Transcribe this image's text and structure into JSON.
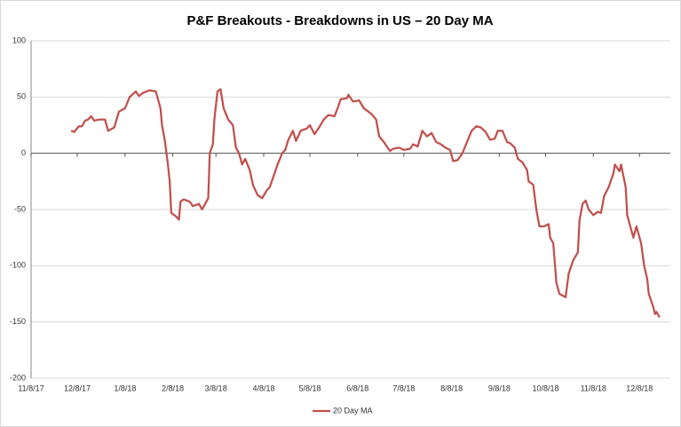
{
  "chart_data": {
    "type": "line",
    "title": "P&F Breakouts - Breakdowns in US – 20 Day MA",
    "x": [
      "2017-12-04",
      "2017-12-06",
      "2017-12-09",
      "2017-12-11",
      "2017-12-13",
      "2017-12-15",
      "2017-12-17",
      "2017-12-19",
      "2017-12-22",
      "2017-12-26",
      "2017-12-28",
      "2018-01-01",
      "2018-01-04",
      "2018-01-08",
      "2018-01-11",
      "2018-01-15",
      "2018-01-17",
      "2018-01-20",
      "2018-01-24",
      "2018-01-28",
      "2018-01-31",
      "2018-02-01",
      "2018-02-03",
      "2018-02-05",
      "2018-02-06",
      "2018-02-07",
      "2018-02-10",
      "2018-02-12",
      "2018-02-13",
      "2018-02-15",
      "2018-02-19",
      "2018-02-21",
      "2018-02-25",
      "2018-02-27",
      "2018-03-01",
      "2018-03-03",
      "2018-03-04",
      "2018-03-06",
      "2018-03-07",
      "2018-03-09",
      "2018-03-11",
      "2018-03-13",
      "2018-03-16",
      "2018-03-19",
      "2018-03-21",
      "2018-03-23",
      "2018-03-25",
      "2018-03-27",
      "2018-03-30",
      "2018-04-01",
      "2018-04-04",
      "2018-04-07",
      "2018-04-10",
      "2018-04-12",
      "2018-04-15",
      "2018-04-17",
      "2018-04-20",
      "2018-04-22",
      "2018-04-24",
      "2018-04-27",
      "2018-04-29",
      "2018-05-02",
      "2018-05-06",
      "2018-05-08",
      "2018-05-11",
      "2018-05-14",
      "2018-05-17",
      "2018-05-20",
      "2018-05-24",
      "2018-05-26",
      "2018-05-28",
      "2018-06-01",
      "2018-06-02",
      "2018-06-05",
      "2018-06-09",
      "2018-06-12",
      "2018-06-14",
      "2018-06-17",
      "2018-06-20",
      "2018-06-22",
      "2018-06-25",
      "2018-06-29",
      "2018-07-01",
      "2018-07-05",
      "2018-07-08",
      "2018-07-12",
      "2018-07-14",
      "2018-07-17",
      "2018-07-20",
      "2018-07-23",
      "2018-07-26",
      "2018-07-29",
      "2018-08-01",
      "2018-08-04",
      "2018-08-07",
      "2018-08-09",
      "2018-08-12",
      "2018-08-15",
      "2018-08-18",
      "2018-08-21",
      "2018-08-24",
      "2018-08-27",
      "2018-08-30",
      "2018-09-02",
      "2018-09-05",
      "2018-09-07",
      "2018-09-10",
      "2018-09-13",
      "2018-09-15",
      "2018-09-18",
      "2018-09-20",
      "2018-09-23",
      "2018-09-26",
      "2018-09-27",
      "2018-09-30",
      "2018-10-02",
      "2018-10-04",
      "2018-10-07",
      "2018-10-10",
      "2018-10-11",
      "2018-10-13",
      "2018-10-15",
      "2018-10-17",
      "2018-10-21",
      "2018-10-23",
      "2018-10-26",
      "2018-10-29",
      "2018-10-30",
      "2018-11-01",
      "2018-11-03",
      "2018-11-05",
      "2018-11-08",
      "2018-11-11",
      "2018-11-13",
      "2018-11-15",
      "2018-11-18",
      "2018-11-21",
      "2018-11-22",
      "2018-11-25",
      "2018-11-26",
      "2018-11-29",
      "2018-11-30",
      "2018-12-02",
      "2018-12-04",
      "2018-12-06",
      "2018-12-09",
      "2018-12-11",
      "2018-12-13",
      "2018-12-14",
      "2018-12-17",
      "2018-12-18",
      "2018-12-19",
      "2018-12-21"
    ],
    "series": [
      {
        "name": "20 Day MA",
        "color": "#c0504d",
        "values": [
          20,
          19,
          24,
          24,
          29,
          30,
          33,
          29,
          30,
          30,
          20,
          23,
          37,
          40,
          50,
          55,
          51,
          54,
          56,
          55,
          40,
          25,
          10,
          -12,
          -25,
          -53,
          -56,
          -59,
          -43,
          -41,
          -43,
          -47,
          -45,
          -50,
          -45,
          -40,
          0,
          8,
          30,
          55,
          57,
          40,
          30,
          25,
          5,
          0,
          -10,
          -5,
          -15,
          -28,
          -37,
          -40,
          -33,
          -30,
          -18,
          -10,
          0,
          3,
          12,
          20,
          11,
          20,
          22,
          25,
          17,
          23,
          30,
          34,
          33,
          40,
          48,
          49,
          52,
          46,
          47,
          40,
          38,
          35,
          30,
          15,
          10,
          2,
          4,
          5,
          3,
          4,
          8,
          6,
          20,
          15,
          18,
          10,
          8,
          5,
          3,
          -7,
          -6,
          0,
          10,
          20,
          24,
          23,
          19,
          12,
          13,
          20,
          20,
          10,
          9,
          5,
          -5,
          -8,
          -15,
          -25,
          -28,
          -50,
          -65,
          -65,
          -63,
          -75,
          -80,
          -115,
          -125,
          -128,
          -107,
          -95,
          -88,
          -60,
          -45,
          -42,
          -50,
          -55,
          -52,
          -53,
          -38,
          -30,
          -18,
          -10,
          -16,
          -10,
          -30,
          -55,
          -65,
          -75,
          -65,
          -80,
          -100,
          -112,
          -125,
          -137,
          -143,
          -141,
          -146
        ]
      }
    ],
    "xlim": [
      "2017-11-08",
      "2018-12-28"
    ],
    "xticks": [
      {
        "value": "2017-11-08",
        "label": "11/8/17"
      },
      {
        "value": "2017-12-08",
        "label": "12/8/17"
      },
      {
        "value": "2018-01-08",
        "label": "1/8/18"
      },
      {
        "value": "2018-02-08",
        "label": "2/8/18"
      },
      {
        "value": "2018-03-08",
        "label": "3/8/18"
      },
      {
        "value": "2018-04-08",
        "label": "4/8/18"
      },
      {
        "value": "2018-05-08",
        "label": "5/8/18"
      },
      {
        "value": "2018-06-08",
        "label": "6/8/18"
      },
      {
        "value": "2018-07-08",
        "label": "7/8/18"
      },
      {
        "value": "2018-08-08",
        "label": "8/8/18"
      },
      {
        "value": "2018-09-08",
        "label": "9/8/18"
      },
      {
        "value": "2018-10-08",
        "label": "10/8/18"
      },
      {
        "value": "2018-11-08",
        "label": "11/8/18"
      },
      {
        "value": "2018-12-08",
        "label": "12/8/18"
      }
    ],
    "ylim": [
      -200,
      100
    ],
    "yticks": [
      -200,
      -150,
      -100,
      -50,
      0,
      50,
      100
    ],
    "grid": true,
    "legend": "bottom"
  }
}
